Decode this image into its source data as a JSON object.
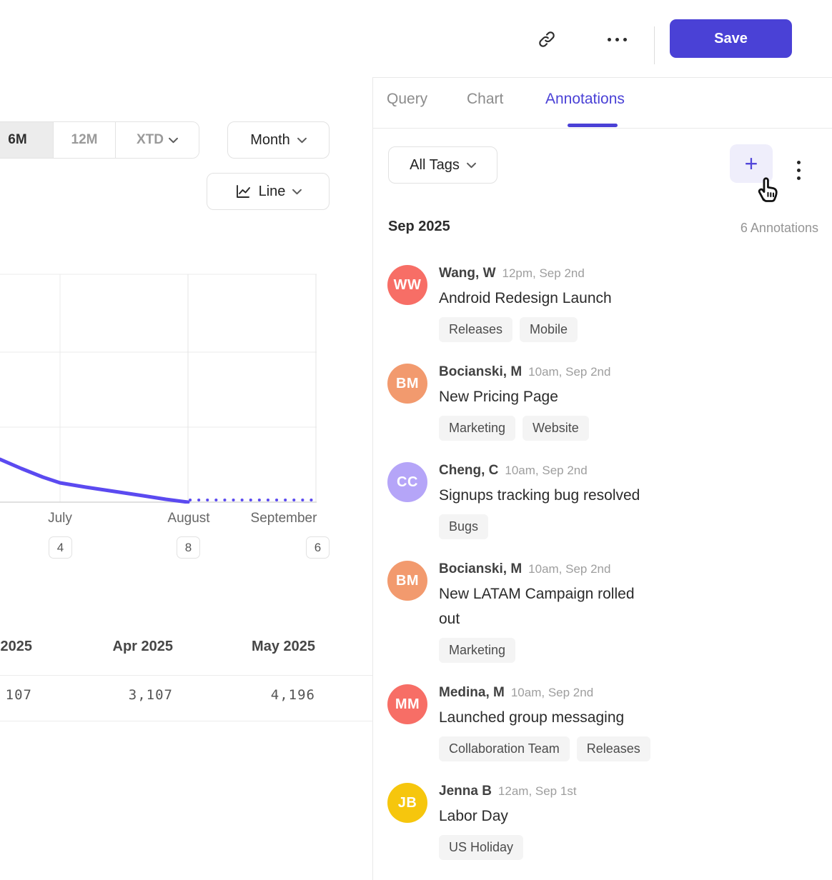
{
  "colors": {
    "accent": "#4a41d6",
    "chart_line": "#5b4af0",
    "add_button_bg": "#efeefb",
    "avatar_coral": "#f76e66",
    "avatar_orange": "#f29a6e",
    "avatar_purple": "#b5a5f8",
    "avatar_yellow": "#f6c60d"
  },
  "topbar": {
    "save_label": "Save",
    "icons": {
      "link": "link-icon",
      "more": "more-menu-icon"
    }
  },
  "tabs": {
    "items": [
      {
        "label": "Query"
      },
      {
        "label": "Chart"
      },
      {
        "label": "Annotations"
      }
    ],
    "active": "Annotations"
  },
  "chart_controls": {
    "range": {
      "options": [
        "6M",
        "12M",
        "XTD"
      ],
      "active": "6M"
    },
    "granularity": {
      "value": "Month"
    },
    "chart_type": {
      "value": "Line"
    }
  },
  "chart_data": {
    "type": "line",
    "title": "",
    "x_tick_labels": [
      "July",
      "August",
      "September"
    ],
    "x_tick_annotation_counts": [
      4,
      8,
      6
    ],
    "grid": true,
    "legend": false,
    "series": [
      {
        "name": "metric",
        "color": "#5b4af0",
        "solid_points": [
          [
            0,
            273
          ],
          [
            30,
            286
          ],
          [
            60,
            298
          ],
          [
            84,
            306
          ],
          [
            120,
            312
          ],
          [
            160,
            318
          ],
          [
            200,
            324
          ],
          [
            232,
            329
          ],
          [
            263,
            333
          ]
        ],
        "dotted_projection_points": [
          [
            266,
            330
          ],
          [
            440,
            330
          ]
        ]
      }
    ]
  },
  "summary_table": {
    "columns": [
      {
        "header": "2025",
        "value": "107"
      },
      {
        "header": "Apr 2025",
        "value": "3,107"
      },
      {
        "header": "May 2025",
        "value": "4,196"
      }
    ]
  },
  "annotations_panel": {
    "filter_label": "All Tags",
    "add_button_glyph": "+",
    "group_title": "Sep 2025",
    "count_label": "6 Annotations",
    "items": [
      {
        "initials": "WW",
        "avatar_color": "#f76e66",
        "author": "Wang, W",
        "timestamp": "12pm, Sep 2nd",
        "title": "Android Redesign Launch",
        "tags": [
          "Releases",
          "Mobile"
        ]
      },
      {
        "initials": "BM",
        "avatar_color": "#f29a6e",
        "author": "Bocianski, M",
        "timestamp": "10am, Sep 2nd",
        "title": "New Pricing Page",
        "tags": [
          "Marketing",
          "Website"
        ]
      },
      {
        "initials": "CC",
        "avatar_color": "#b5a5f8",
        "author": "Cheng, C",
        "timestamp": "10am, Sep 2nd",
        "title": "Signups tracking bug resolved",
        "tags": [
          "Bugs"
        ]
      },
      {
        "initials": "BM",
        "avatar_color": "#f29a6e",
        "author": "Bocianski, M",
        "timestamp": "10am, Sep 2nd",
        "title": "New LATAM Campaign rolled out",
        "tags": [
          "Marketing"
        ]
      },
      {
        "initials": "MM",
        "avatar_color": "#f76e66",
        "author": "Medina, M",
        "timestamp": "10am, Sep 2nd",
        "title": "Launched group messaging",
        "tags": [
          "Collaboration Team",
          "Releases"
        ]
      },
      {
        "initials": "JB",
        "avatar_color": "#f6c60d",
        "author": "Jenna B",
        "timestamp": "12am, Sep 1st",
        "title": "Labor Day",
        "tags": [
          "US Holiday"
        ]
      }
    ]
  }
}
